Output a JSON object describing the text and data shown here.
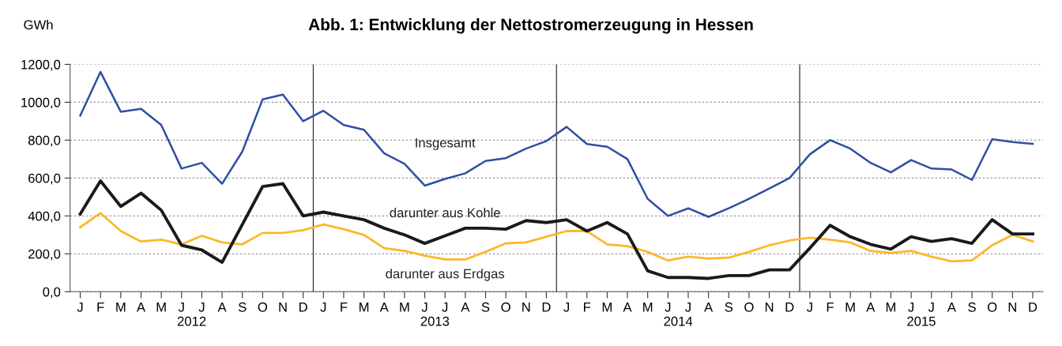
{
  "chart_data": {
    "type": "line",
    "title": "Abb. 1: Entwicklung der Nettostromerzeugung in Hessen",
    "ylabel": "GWh",
    "categories": [
      "J",
      "F",
      "M",
      "A",
      "M",
      "J",
      "J",
      "A",
      "S",
      "O",
      "N",
      "D",
      "J",
      "F",
      "M",
      "A",
      "M",
      "J",
      "J",
      "A",
      "S",
      "O",
      "N",
      "D",
      "J",
      "F",
      "M",
      "A",
      "M",
      "J",
      "J",
      "A",
      "S",
      "O",
      "N",
      "D",
      "J",
      "F",
      "M",
      "A",
      "M",
      "J",
      "J",
      "A",
      "S",
      "O",
      "N",
      "D"
    ],
    "annotations": [
      "2012",
      "2013",
      "2014",
      "2015"
    ],
    "series": [
      {
        "name": "Insgesamt",
        "color": "#2e4fa3",
        "values": [
          930,
          1160,
          950,
          965,
          880,
          650,
          680,
          570,
          740,
          1015,
          1040,
          900,
          955,
          880,
          855,
          730,
          675,
          560,
          595,
          625,
          690,
          705,
          755,
          795,
          870,
          780,
          765,
          700,
          490,
          400,
          440,
          395,
          440,
          490,
          545,
          600,
          725,
          800,
          755,
          680,
          630,
          695,
          650,
          645,
          590,
          805,
          790,
          780
        ]
      },
      {
        "name": "darunter aus Kohle",
        "color": "#1a1a1a",
        "values": [
          410,
          585,
          450,
          520,
          430,
          245,
          220,
          155,
          355,
          555,
          570,
          400,
          420,
          400,
          380,
          335,
          300,
          255,
          295,
          335,
          335,
          330,
          375,
          365,
          380,
          320,
          365,
          305,
          110,
          75,
          75,
          70,
          85,
          85,
          115,
          115,
          230,
          350,
          290,
          250,
          225,
          290,
          265,
          280,
          255,
          380,
          305,
          305
        ]
      },
      {
        "name": "darunter aus Erdgas",
        "color": "#fbb829",
        "values": [
          340,
          415,
          320,
          265,
          275,
          250,
          295,
          260,
          250,
          310,
          310,
          325,
          355,
          330,
          300,
          230,
          215,
          190,
          170,
          170,
          210,
          255,
          260,
          290,
          320,
          320,
          250,
          240,
          210,
          165,
          185,
          175,
          180,
          210,
          245,
          270,
          285,
          275,
          260,
          215,
          205,
          215,
          185,
          160,
          165,
          245,
          300,
          265
        ]
      }
    ],
    "ylim": [
      0,
      1200
    ],
    "yticks": [
      {
        "value": 0,
        "label": "0,0"
      },
      {
        "value": 200,
        "label": "200,0"
      },
      {
        "value": 400,
        "label": "400,0"
      },
      {
        "value": 600,
        "label": "600,0"
      },
      {
        "value": 800,
        "label": "800,0"
      },
      {
        "value": 1000,
        "label": "1000,0"
      },
      {
        "value": 1200,
        "label": "1200,0"
      }
    ],
    "grid": "y",
    "legend": false,
    "marker": "none",
    "line_style": "solid"
  }
}
